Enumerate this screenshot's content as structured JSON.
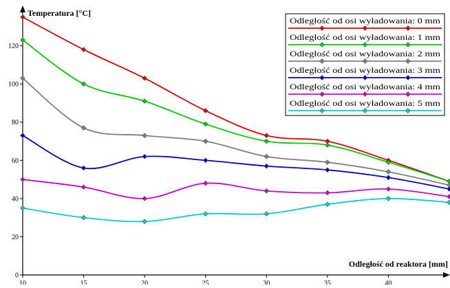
{
  "chart_data": {
    "type": "line",
    "title": "",
    "ylabel": "Temperatura  [°C]",
    "xlabel": "Odległość od reaktora [mm]",
    "x": [
      10,
      15,
      20,
      25,
      30,
      35,
      40,
      45
    ],
    "xlim": [
      10,
      45
    ],
    "ylim": [
      0,
      140
    ],
    "xticks": [
      10,
      15,
      20,
      25,
      30,
      35,
      40
    ],
    "yticks": [
      0,
      20,
      40,
      60,
      80,
      100,
      120
    ],
    "grid": false,
    "smooth": true,
    "legend_position": "top-right",
    "series": [
      {
        "name": "Odległość od osi wyładowania: 0 mm",
        "color": "#e00000",
        "values": [
          135,
          118,
          103,
          86,
          73,
          70,
          60,
          49
        ]
      },
      {
        "name": "Odległość od osi wyładowania: 1 mm",
        "color": "#00cc00",
        "values": [
          123,
          100,
          91,
          79,
          70,
          68,
          59,
          49
        ]
      },
      {
        "name": "Odległość od osi wyładowania: 2 mm",
        "color": "#7f7f7f",
        "values": [
          103,
          77,
          73,
          70,
          62,
          59,
          54,
          47
        ]
      },
      {
        "name": "Odległość od osi wyładowania: 3 mm",
        "color": "#0000cc",
        "values": [
          73,
          56,
          62,
          60,
          57,
          55,
          51,
          45
        ]
      },
      {
        "name": "Odległość od osi wyładowania: 4 mm",
        "color": "#cc00cc",
        "values": [
          50,
          46,
          40,
          48,
          44,
          43,
          45,
          41
        ]
      },
      {
        "name": "Odległość od osi wyładowania: 5 mm",
        "color": "#00cccc",
        "values": [
          35,
          30,
          28,
          32,
          32,
          37,
          40,
          38
        ]
      }
    ]
  }
}
